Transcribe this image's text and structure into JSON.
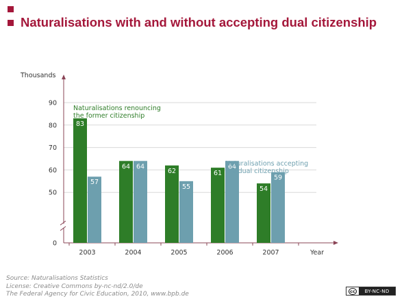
{
  "title": "Naturalisations with and without accepting dual citizenship",
  "colors": {
    "accent": "#a4173a",
    "renounce": "#2e7d28",
    "dual": "#6d9fae"
  },
  "chart_data": {
    "type": "bar",
    "ylabel": "Thousands",
    "xlabel": "Year",
    "categories": [
      "2003",
      "2004",
      "2005",
      "2006",
      "2007"
    ],
    "series": [
      {
        "name": "Naturalisations renouncing the former citizenship",
        "label_lines": [
          "Naturalisations renouncing",
          "the former citizenship"
        ],
        "values": [
          83,
          64,
          62,
          61,
          54
        ]
      },
      {
        "name": "Naturalisations accepting the dual citizenship",
        "label_lines": [
          "Naturalisations accepting",
          "the dual citizenship"
        ],
        "values": [
          57,
          64,
          55,
          64,
          59
        ]
      }
    ],
    "yticks": [
      0,
      50,
      60,
      70,
      80,
      90
    ],
    "ylim": [
      40,
      90
    ],
    "axis_break": true,
    "grid": true
  },
  "footer": {
    "source": "Source: Naturalisations Statistics",
    "license": "License: Creative Commons by-nc-nd/2.0/de",
    "publisher": "The Federal Agency for Civic Education, 2010, www.bpb.de",
    "badge_cc": "cc",
    "badge_text": "BY-NC-ND"
  }
}
